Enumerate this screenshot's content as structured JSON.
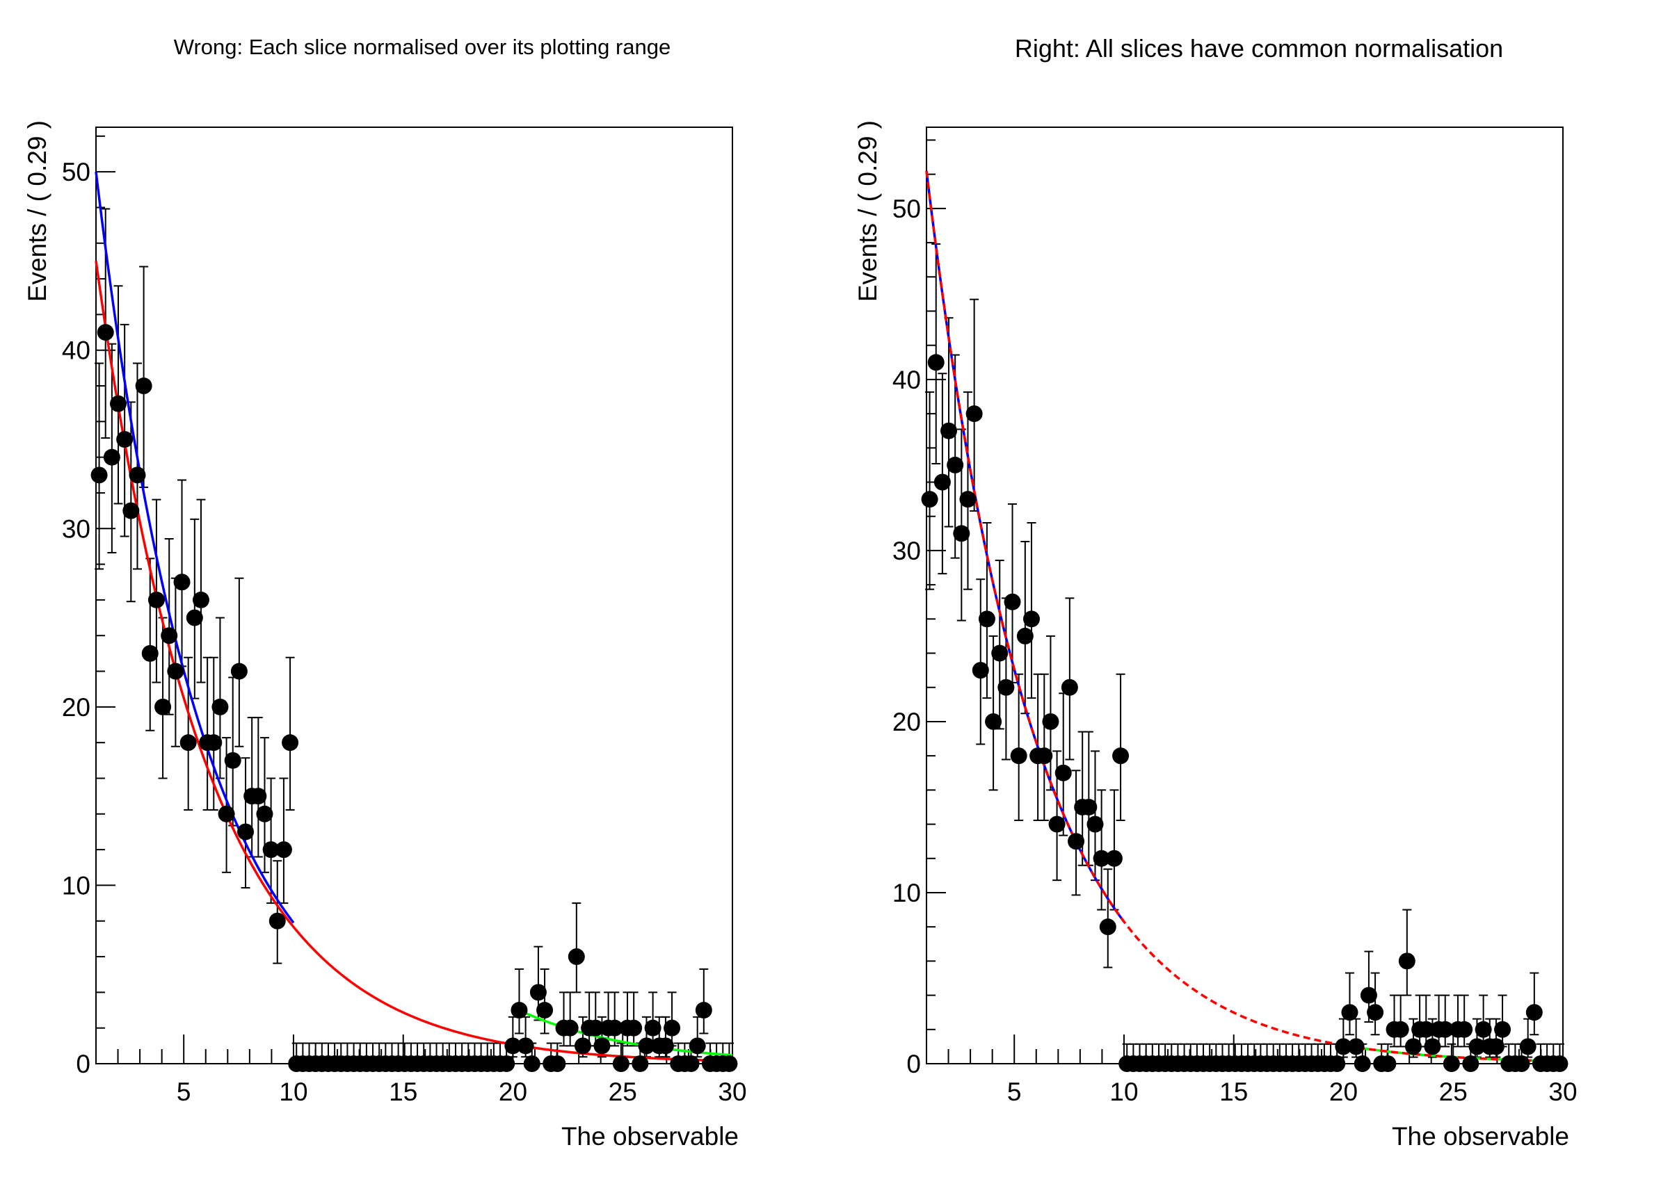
{
  "chart_data": [
    {
      "type": "scatter",
      "title": "Wrong: Each slice normalised over its plotting range",
      "xlabel": "The observable",
      "ylabel": "Events / ( 0.29 )",
      "xlim": [
        1,
        30
      ],
      "ylim": [
        0,
        52.5
      ],
      "x_ticks": [
        5,
        10,
        15,
        20,
        25,
        30
      ],
      "y_ticks": [
        0,
        10,
        20,
        30,
        40,
        50
      ],
      "x_tick_labels": [
        "5",
        "10",
        "15",
        "20",
        "25",
        "30"
      ],
      "y_tick_labels": [
        "0",
        "10",
        "20",
        "30",
        "40",
        "50"
      ],
      "grid": false,
      "bin_width": 0.29,
      "bin_start": 1,
      "counts": [
        33,
        41,
        34,
        37,
        35,
        31,
        33,
        38,
        23,
        26,
        20,
        24,
        22,
        27,
        18,
        25,
        26,
        18,
        18,
        20,
        14,
        17,
        22,
        13,
        15,
        15,
        14,
        12,
        8,
        12,
        18,
        0,
        0,
        0,
        0,
        0,
        0,
        0,
        0,
        0,
        0,
        0,
        0,
        0,
        0,
        0,
        0,
        0,
        0,
        0,
        0,
        0,
        0,
        0,
        0,
        0,
        0,
        0,
        0,
        0,
        0,
        0,
        0,
        0,
        0,
        1,
        3,
        1,
        0,
        4,
        3,
        0,
        0,
        2,
        2,
        6,
        1,
        2,
        2,
        1,
        2,
        2,
        0,
        2,
        2,
        0,
        1,
        2,
        1,
        1,
        2,
        0,
        0,
        0,
        1,
        3,
        0,
        0,
        0,
        0
      ],
      "curves": [
        {
          "name": "full-range-fit",
          "color": "#ff0000",
          "style": "solid",
          "x_range": [
            1,
            30
          ],
          "amplitude": 45.0,
          "decay": 0.1966
        },
        {
          "name": "slice-low-fit",
          "color": "#0000ff",
          "style": "solid",
          "x_range": [
            1,
            10
          ],
          "amplitude": 50.0,
          "decay": 0.205
        },
        {
          "name": "slice-high-fit",
          "color": "#00ff00",
          "style": "solid",
          "x_range": [
            20,
            30
          ],
          "amplitude": 3.16,
          "decay": 0.19,
          "x_origin": 20
        }
      ]
    },
    {
      "type": "scatter",
      "title": "Right: All slices have common normalisation",
      "xlabel": "The observable",
      "ylabel": "Events / ( 0.29 )",
      "xlim": [
        1,
        30
      ],
      "ylim": [
        0,
        54.75
      ],
      "x_ticks": [
        5,
        10,
        15,
        20,
        25,
        30
      ],
      "y_ticks": [
        0,
        10,
        20,
        30,
        40,
        50
      ],
      "x_tick_labels": [
        "5",
        "10",
        "15",
        "20",
        "25",
        "30"
      ],
      "y_tick_labels": [
        "0",
        "10",
        "20",
        "30",
        "40",
        "50"
      ],
      "grid": false,
      "bin_width": 0.29,
      "bin_start": 1,
      "counts": [
        33,
        41,
        34,
        37,
        35,
        31,
        33,
        38,
        23,
        26,
        20,
        24,
        22,
        27,
        18,
        25,
        26,
        18,
        18,
        20,
        14,
        17,
        22,
        13,
        15,
        15,
        14,
        12,
        8,
        12,
        18,
        0,
        0,
        0,
        0,
        0,
        0,
        0,
        0,
        0,
        0,
        0,
        0,
        0,
        0,
        0,
        0,
        0,
        0,
        0,
        0,
        0,
        0,
        0,
        0,
        0,
        0,
        0,
        0,
        0,
        0,
        0,
        0,
        0,
        0,
        1,
        3,
        1,
        0,
        4,
        3,
        0,
        0,
        2,
        2,
        6,
        1,
        2,
        2,
        1,
        2,
        2,
        0,
        2,
        2,
        0,
        1,
        2,
        1,
        1,
        2,
        0,
        0,
        0,
        1,
        3,
        0,
        0,
        0,
        0
      ],
      "curves": [
        {
          "name": "slice-high-fit",
          "color": "#00ff00",
          "style": "solid",
          "x_range": [
            20,
            30
          ],
          "amplitude": 52.2,
          "decay": 0.2043
        },
        {
          "name": "slice-low-fit",
          "color": "#0000ff",
          "style": "solid",
          "x_range": [
            1,
            10
          ],
          "amplitude": 52.2,
          "decay": 0.2043
        },
        {
          "name": "full-range-fit",
          "color": "#ff0000",
          "style": "dashed",
          "x_range": [
            1,
            30
          ],
          "amplitude": 52.2,
          "decay": 0.2043
        }
      ]
    }
  ]
}
